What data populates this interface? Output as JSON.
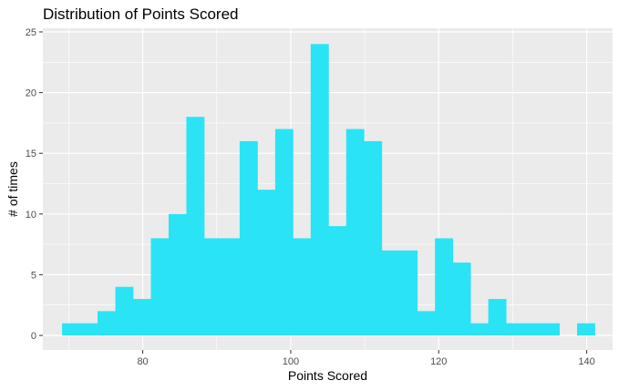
{
  "chart_data": {
    "type": "bar",
    "title": "Distribution of Points Scored",
    "xlabel": "Points Scored",
    "ylabel": "# of times",
    "xlim": [
      66.5,
      143.5
    ],
    "ylim": [
      -1.2,
      25.3
    ],
    "xticks": [
      80,
      100,
      120,
      140
    ],
    "yticks": [
      0,
      5,
      10,
      15,
      20,
      25
    ],
    "bin_width": 2.4,
    "bins": [
      {
        "x": 70.3,
        "count": 1
      },
      {
        "x": 72.7,
        "count": 1
      },
      {
        "x": 75.1,
        "count": 2
      },
      {
        "x": 77.5,
        "count": 4
      },
      {
        "x": 79.9,
        "count": 3
      },
      {
        "x": 82.3,
        "count": 8
      },
      {
        "x": 84.7,
        "count": 10
      },
      {
        "x": 87.1,
        "count": 18
      },
      {
        "x": 89.5,
        "count": 8
      },
      {
        "x": 91.9,
        "count": 8
      },
      {
        "x": 94.3,
        "count": 16
      },
      {
        "x": 96.7,
        "count": 12
      },
      {
        "x": 99.1,
        "count": 17
      },
      {
        "x": 101.5,
        "count": 8
      },
      {
        "x": 103.9,
        "count": 24
      },
      {
        "x": 106.3,
        "count": 9
      },
      {
        "x": 108.7,
        "count": 17
      },
      {
        "x": 111.1,
        "count": 16
      },
      {
        "x": 113.5,
        "count": 7
      },
      {
        "x": 115.9,
        "count": 7
      },
      {
        "x": 118.3,
        "count": 2
      },
      {
        "x": 120.7,
        "count": 8
      },
      {
        "x": 123.1,
        "count": 6
      },
      {
        "x": 125.5,
        "count": 1
      },
      {
        "x": 127.9,
        "count": 3
      },
      {
        "x": 130.3,
        "count": 1
      },
      {
        "x": 132.7,
        "count": 1
      },
      {
        "x": 135.1,
        "count": 1
      },
      {
        "x": 137.5,
        "count": 0
      },
      {
        "x": 139.9,
        "count": 1
      }
    ],
    "grid": true,
    "colors": {
      "bar": "#2ae3f5",
      "panel": "#ebebeb",
      "grid": "#ffffff"
    }
  }
}
